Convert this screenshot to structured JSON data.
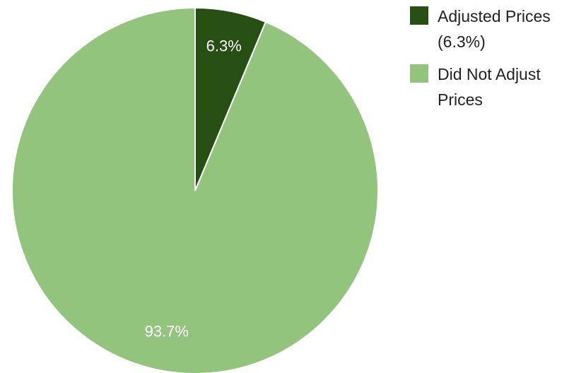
{
  "chart_data": {
    "type": "pie",
    "title": "",
    "slices": [
      {
        "label": "Adjusted Prices",
        "legend_lines": [
          "Adjusted Prices",
          "(6.3%)"
        ],
        "value": 6.3,
        "value_label": "6.3%",
        "color": "#274e13"
      },
      {
        "label": "Did Not Adjust Prices",
        "legend_lines": [
          "Did Not Adjust",
          "Prices"
        ],
        "value": 93.7,
        "value_label": "93.7%",
        "color": "#93c47d"
      }
    ],
    "legend_position": "right",
    "start_angle": "12 o'clock",
    "direction": "clockwise"
  }
}
